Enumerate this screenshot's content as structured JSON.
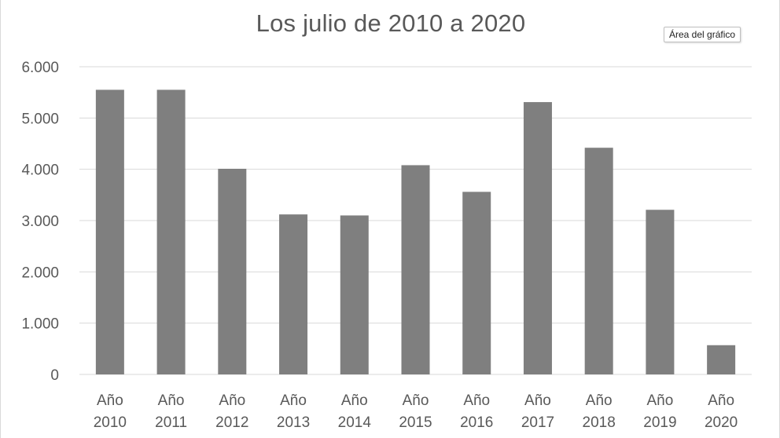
{
  "chart_data": {
    "type": "bar",
    "title": "Los julio de 2010 a 2020",
    "categories": [
      [
        "Año",
        "2010"
      ],
      [
        "Año",
        "2011"
      ],
      [
        "Año",
        "2012"
      ],
      [
        "Año",
        "2013"
      ],
      [
        "Año",
        "2014"
      ],
      [
        "Año",
        "2015"
      ],
      [
        "Año",
        "2016"
      ],
      [
        "Año",
        "2017"
      ],
      [
        "Año",
        "2018"
      ],
      [
        "Año",
        "2019"
      ],
      [
        "Año",
        "2020"
      ]
    ],
    "values": [
      5550,
      5550,
      4010,
      3120,
      3100,
      4080,
      3560,
      5310,
      4420,
      3210,
      570
    ],
    "ylim": [
      0,
      6000
    ],
    "yticks": [
      0,
      1000,
      2000,
      3000,
      4000,
      5000,
      6000
    ],
    "ytick_labels": [
      "0",
      "1.000",
      "2.000",
      "3.000",
      "4.000",
      "5.000",
      "6.000"
    ],
    "xlabel": "",
    "ylabel": "",
    "grid": true,
    "bar_color": "#7f7f7f",
    "grid_color": "#d9d9d9"
  },
  "tooltip": {
    "label": "Área del gráfico"
  }
}
